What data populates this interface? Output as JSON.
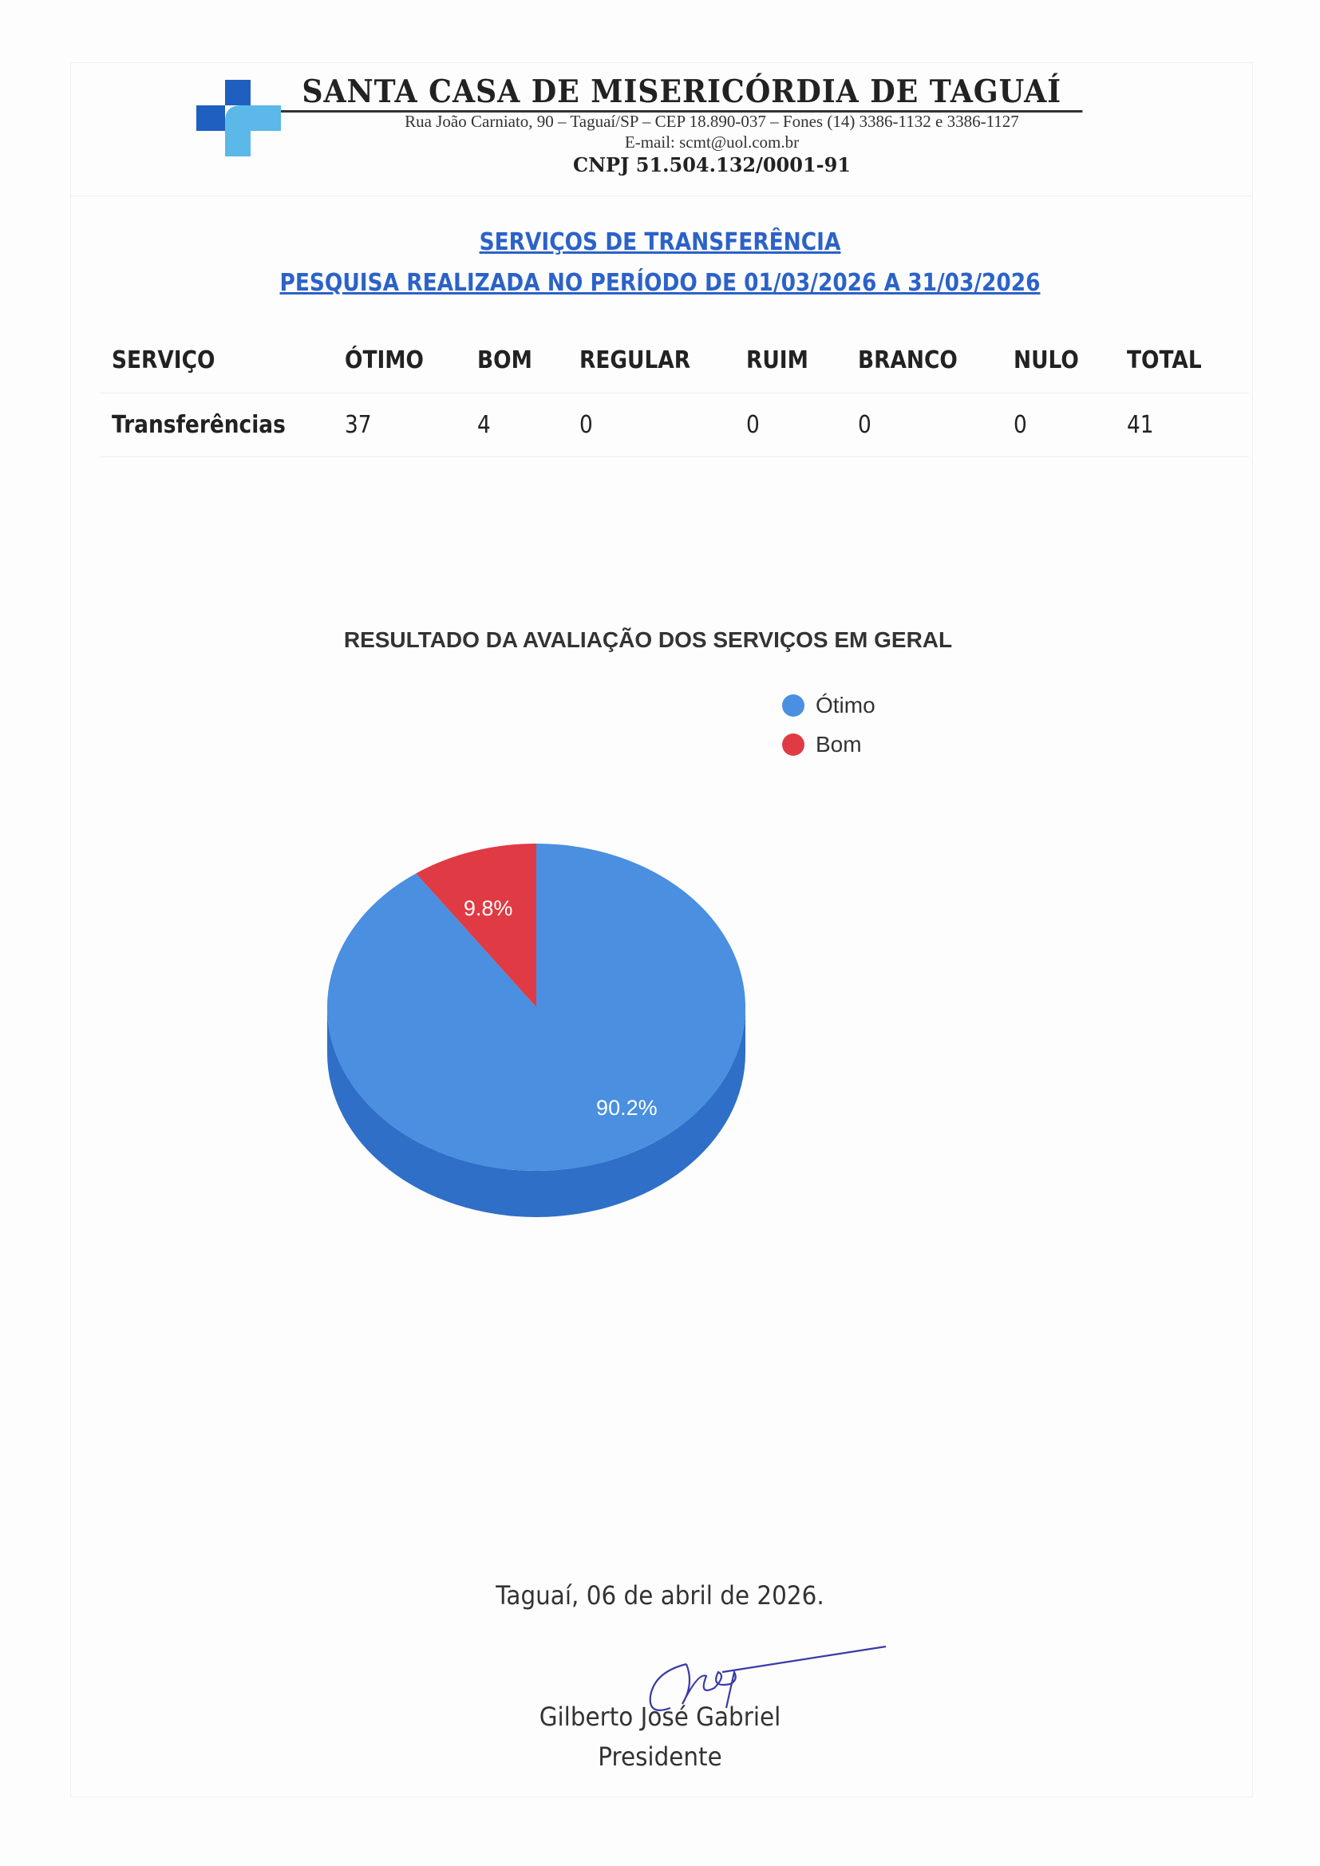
{
  "header": {
    "organization": "SANTA CASA DE MISERICÓRDIA DE TAGUAÍ",
    "address": "Rua João Carniato, 90 – Taguaí/SP – CEP 18.890-037 – Fones (14) 3386-1132 e 3386-1127",
    "email": "E-mail: scmt@uol.com.br",
    "cnpj": "CNPJ 51.504.132/0001-91",
    "logo_colors": [
      "#1f5fc0",
      "#5bb8e8"
    ]
  },
  "titles": {
    "line1": "SERVIÇOS DE TRANSFERÊNCIA",
    "line2": "PESQUISA REALIZADA NO PERÍODO DE 01/03/2026 A 31/03/2026"
  },
  "table": {
    "headers": [
      "SERVIÇO",
      "ÓTIMO",
      "BOM",
      "REGULAR",
      "RUIM",
      "BRANCO",
      "NULO",
      "TOTAL"
    ],
    "rows": [
      [
        "Transferências",
        "37",
        "4",
        "0",
        "0",
        "0",
        "0",
        "41"
      ]
    ]
  },
  "chart_data": {
    "type": "pie",
    "title": "RESULTADO DA AVALIAÇÃO DOS SERVIÇOS EM GERAL",
    "style": "3d",
    "legend_position": "top-right",
    "slices": [
      {
        "name": "Ótimo",
        "value": 37,
        "label": "90.2%",
        "color": "#4a8fe0"
      },
      {
        "name": "Bom",
        "value": 4,
        "label": "9.8%",
        "color": "#e03a44"
      }
    ]
  },
  "footer": {
    "place_date": "Taguaí, 06 de abril de 2026.",
    "signer": "Gilberto José Gabriel",
    "role": "Presidente"
  }
}
